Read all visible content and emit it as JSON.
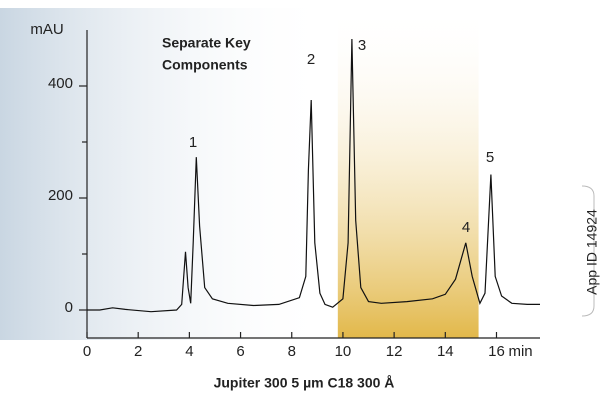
{
  "chart_data": {
    "type": "line",
    "title": "Jupiter 300 5 µm C18 300 Å",
    "annotation": [
      "Separate Key",
      "Components"
    ],
    "side_label": "App ID  14924",
    "xlabel": "min",
    "ylabel": "mAU",
    "peak_labels": [
      "1",
      "2",
      "3",
      "4",
      "5"
    ],
    "x": [
      0,
      0.5,
      1,
      1.5,
      2.5,
      3.5,
      3.7,
      3.85,
      3.95,
      4.05,
      4.15,
      4.27,
      4.4,
      4.6,
      4.9,
      5.5,
      6.5,
      7.5,
      8.3,
      8.55,
      8.65,
      8.76,
      8.9,
      9.1,
      9.3,
      9.6,
      10.0,
      10.2,
      10.35,
      10.5,
      10.7,
      11.0,
      11.5,
      12.5,
      13.5,
      14.0,
      14.4,
      14.8,
      15.05,
      15.35,
      15.55,
      15.78,
      15.95,
      16.2,
      16.6,
      17.2,
      17.7
    ],
    "series": [
      {
        "name": "Jupiter 300 5 µm C18",
        "color": "#111111",
        "values": [
          0,
          0,
          4,
          1,
          -3,
          0,
          10,
          104,
          40,
          12,
          120,
          273,
          150,
          40,
          20,
          12,
          8,
          10,
          22,
          60,
          250,
          375,
          120,
          30,
          10,
          5,
          20,
          120,
          484,
          160,
          40,
          15,
          12,
          15,
          20,
          28,
          55,
          120,
          60,
          12,
          30,
          242,
          60,
          25,
          12,
          10,
          10
        ]
      }
    ],
    "xlim": [
      0,
      17.7
    ],
    "ylim": [
      -50,
      500
    ],
    "xticks": [
      0,
      2,
      4,
      6,
      8,
      10,
      12,
      14,
      16
    ],
    "yticks": [
      0,
      200,
      400
    ],
    "yminorticks": [
      100,
      300
    ],
    "highlight_range": [
      9.8,
      15.3
    ],
    "highlight_color": "#e2b84a"
  }
}
